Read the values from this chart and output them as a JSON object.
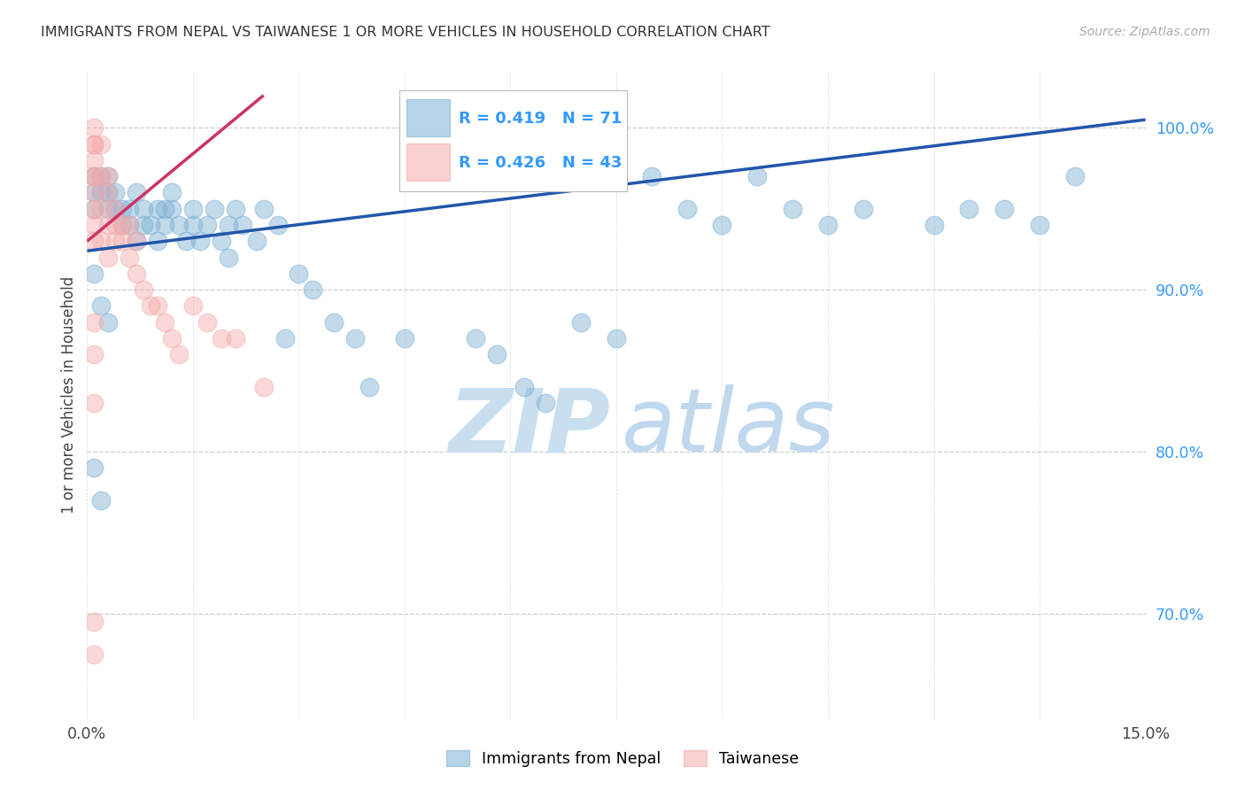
{
  "title": "IMMIGRANTS FROM NEPAL VS TAIWANESE 1 OR MORE VEHICLES IN HOUSEHOLD CORRELATION CHART",
  "source": "Source: ZipAtlas.com",
  "ylabel": "1 or more Vehicles in Household",
  "xlim": [
    0.0,
    0.15
  ],
  "ylim": [
    0.635,
    1.035
  ],
  "yticks": [
    1.0,
    0.9,
    0.8,
    0.7
  ],
  "ytick_labels": [
    "100.0%",
    "90.0%",
    "80.0%",
    "70.0%"
  ],
  "xtick_positions": [
    0.0,
    0.015,
    0.03,
    0.045,
    0.06,
    0.075,
    0.09,
    0.105,
    0.12,
    0.135,
    0.15
  ],
  "xtick_labels": [
    "0.0%",
    "",
    "",
    "",
    "",
    "",
    "",
    "",
    "",
    "",
    "15.0%"
  ],
  "nepal_R": 0.419,
  "nepal_N": 71,
  "taiwanese_R": 0.426,
  "taiwanese_N": 43,
  "nepal_color": "#7BAFD4",
  "taiwanese_color": "#F4AAAA",
  "nepal_line_color": "#2255AA",
  "taiwanese_line_color": "#CC3366",
  "nepal_line_x0": 0.0,
  "nepal_line_y0": 0.924,
  "nepal_line_x1": 0.15,
  "nepal_line_y1": 1.005,
  "taiwanese_line_x0": 0.0,
  "taiwanese_line_y0": 0.93,
  "taiwanese_line_x1": 0.025,
  "taiwanese_line_y1": 1.02,
  "nepal_x": [
    0.001,
    0.001,
    0.001,
    0.002,
    0.002,
    0.003,
    0.003,
    0.003,
    0.004,
    0.004,
    0.005,
    0.005,
    0.006,
    0.006,
    0.007,
    0.007,
    0.008,
    0.008,
    0.009,
    0.01,
    0.01,
    0.011,
    0.011,
    0.012,
    0.012,
    0.013,
    0.014,
    0.015,
    0.015,
    0.016,
    0.017,
    0.018,
    0.019,
    0.02,
    0.02,
    0.021,
    0.022,
    0.024,
    0.025,
    0.027,
    0.028,
    0.03,
    0.032,
    0.035,
    0.038,
    0.04,
    0.045,
    0.05,
    0.055,
    0.058,
    0.062,
    0.065,
    0.07,
    0.075,
    0.08,
    0.085,
    0.09,
    0.095,
    0.1,
    0.105,
    0.11,
    0.12,
    0.125,
    0.13,
    0.135,
    0.14,
    0.001,
    0.002,
    0.003,
    0.001,
    0.002
  ],
  "nepal_y": [
    0.97,
    0.96,
    0.95,
    0.97,
    0.96,
    0.97,
    0.96,
    0.95,
    0.96,
    0.95,
    0.95,
    0.94,
    0.95,
    0.94,
    0.96,
    0.93,
    0.95,
    0.94,
    0.94,
    0.95,
    0.93,
    0.95,
    0.94,
    0.96,
    0.95,
    0.94,
    0.93,
    0.95,
    0.94,
    0.93,
    0.94,
    0.95,
    0.93,
    0.94,
    0.92,
    0.95,
    0.94,
    0.93,
    0.95,
    0.94,
    0.87,
    0.91,
    0.9,
    0.88,
    0.87,
    0.84,
    0.87,
    0.98,
    0.87,
    0.86,
    0.84,
    0.83,
    0.88,
    0.87,
    0.97,
    0.95,
    0.94,
    0.97,
    0.95,
    0.94,
    0.95,
    0.94,
    0.95,
    0.95,
    0.94,
    0.97,
    0.91,
    0.89,
    0.88,
    0.79,
    0.77
  ],
  "taiwanese_x": [
    0.001,
    0.001,
    0.001,
    0.001,
    0.001,
    0.001,
    0.001,
    0.001,
    0.001,
    0.001,
    0.002,
    0.002,
    0.002,
    0.002,
    0.003,
    0.003,
    0.003,
    0.003,
    0.004,
    0.004,
    0.004,
    0.005,
    0.005,
    0.006,
    0.006,
    0.007,
    0.007,
    0.008,
    0.009,
    0.01,
    0.011,
    0.012,
    0.013,
    0.015,
    0.017,
    0.019,
    0.021,
    0.025,
    0.001,
    0.001,
    0.001,
    0.001,
    0.001
  ],
  "taiwanese_y": [
    1.0,
    0.99,
    0.99,
    0.98,
    0.97,
    0.97,
    0.96,
    0.95,
    0.94,
    0.93,
    0.99,
    0.97,
    0.95,
    0.93,
    0.97,
    0.96,
    0.94,
    0.92,
    0.95,
    0.94,
    0.93,
    0.94,
    0.93,
    0.94,
    0.92,
    0.93,
    0.91,
    0.9,
    0.89,
    0.89,
    0.88,
    0.87,
    0.86,
    0.89,
    0.88,
    0.87,
    0.87,
    0.84,
    0.88,
    0.86,
    0.83,
    0.695,
    0.675
  ]
}
